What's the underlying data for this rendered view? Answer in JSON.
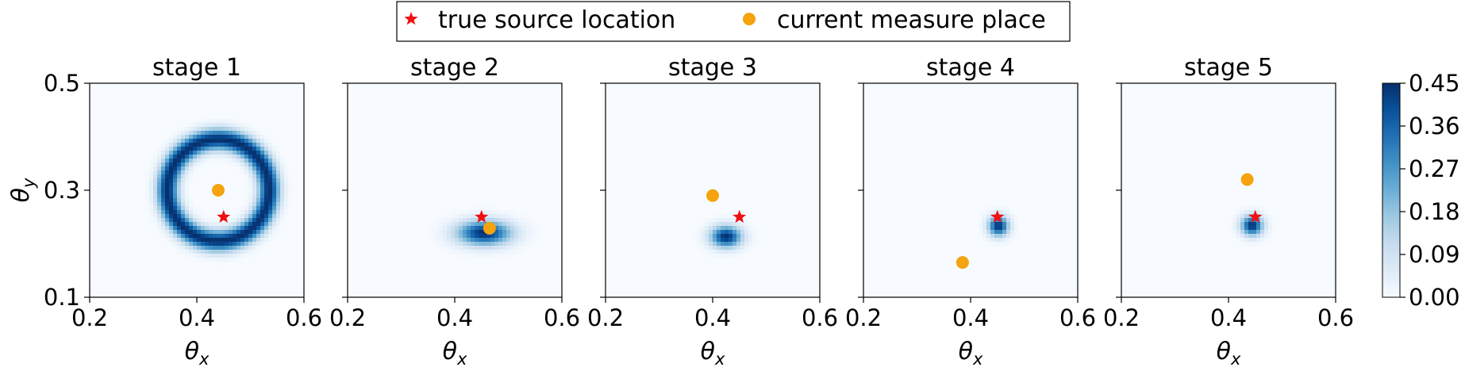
{
  "legend": {
    "placement": "top-center",
    "entries": [
      {
        "label": "true source location",
        "marker": "star",
        "color": "#ee1111"
      },
      {
        "label": "current measure place",
        "marker": "circle",
        "color": "#f5a30f"
      }
    ]
  },
  "colorbar": {
    "colormap": "Blues",
    "ticks": [
      "0.00",
      "0.09",
      "0.18",
      "0.27",
      "0.36",
      "0.45"
    ],
    "range": [
      0,
      0.45
    ]
  },
  "colors": {
    "low": "#f7fbff",
    "mid": "#6aaed6",
    "high": "#08306b"
  },
  "chart_data": [
    {
      "type": "heatmap",
      "title": "stage 1",
      "xlabel": "θx",
      "ylabel": "θy",
      "xlim": [
        0.2,
        0.6
      ],
      "ylim": [
        0.1,
        0.5
      ],
      "xticks": [
        "0.2",
        "0.4",
        "0.6"
      ],
      "yticks": [
        "0.1",
        "0.3",
        "0.5"
      ],
      "true_source": [
        0.45,
        0.25
      ],
      "measure_place": [
        0.44,
        0.3
      ],
      "distribution": {
        "shape": "ring",
        "center": [
          0.44,
          0.3
        ],
        "radius": 0.095,
        "width": 0.014,
        "peak": 0.45
      }
    },
    {
      "type": "heatmap",
      "title": "stage 2",
      "xlabel": "θx",
      "ylabel": "",
      "xlim": [
        0.2,
        0.6
      ],
      "ylim": [
        0.1,
        0.5
      ],
      "xticks": [
        "0.2",
        "0.4",
        "0.6"
      ],
      "yticks": [],
      "true_source": [
        0.45,
        0.25
      ],
      "measure_place": [
        0.465,
        0.229
      ],
      "distribution": {
        "shape": "blob",
        "center": [
          0.455,
          0.22
        ],
        "sx": 0.035,
        "sy": 0.016,
        "peak": 0.45
      }
    },
    {
      "type": "heatmap",
      "title": "stage 3",
      "xlabel": "θx",
      "ylabel": "",
      "xlim": [
        0.2,
        0.6
      ],
      "ylim": [
        0.1,
        0.5
      ],
      "xticks": [
        "0.2",
        "0.4",
        "0.6"
      ],
      "yticks": [],
      "true_source": [
        0.45,
        0.25
      ],
      "measure_place": [
        0.4,
        0.29
      ],
      "distribution": {
        "shape": "blob",
        "center": [
          0.425,
          0.213
        ],
        "sx": 0.02,
        "sy": 0.014,
        "peak": 0.45
      }
    },
    {
      "type": "heatmap",
      "title": "stage 4",
      "xlabel": "θx",
      "ylabel": "",
      "xlim": [
        0.2,
        0.6
      ],
      "ylim": [
        0.1,
        0.5
      ],
      "xticks": [
        "0.2",
        "0.4",
        "0.6"
      ],
      "yticks": [],
      "true_source": [
        0.45,
        0.25
      ],
      "measure_place": [
        0.385,
        0.165
      ],
      "distribution": {
        "shape": "blob",
        "center": [
          0.452,
          0.233
        ],
        "sx": 0.013,
        "sy": 0.013,
        "peak": 0.45
      }
    },
    {
      "type": "heatmap",
      "title": "stage 5",
      "xlabel": "θx",
      "ylabel": "",
      "xlim": [
        0.2,
        0.6
      ],
      "ylim": [
        0.1,
        0.5
      ],
      "xticks": [
        "0.2",
        "0.4",
        "0.6"
      ],
      "yticks": [],
      "true_source": [
        0.45,
        0.25
      ],
      "measure_place": [
        0.435,
        0.32
      ],
      "distribution": {
        "shape": "blob",
        "center": [
          0.444,
          0.234
        ],
        "sx": 0.014,
        "sy": 0.013,
        "peak": 0.45
      }
    }
  ]
}
